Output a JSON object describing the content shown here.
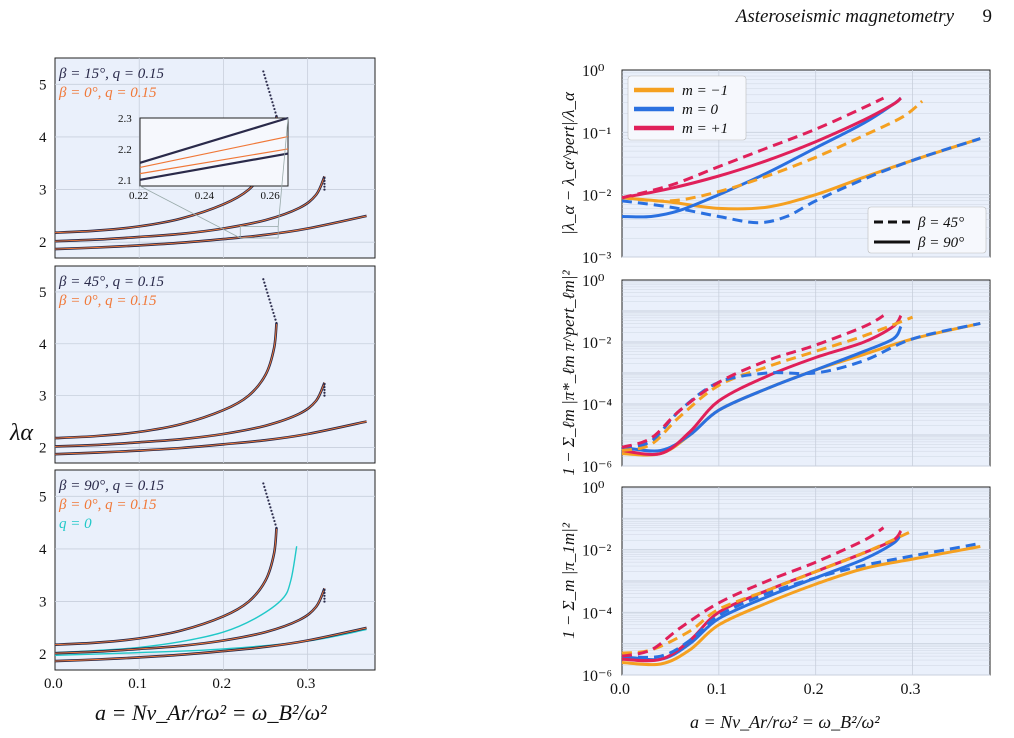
{
  "header": {
    "title": "Asteroseismic magnetometry",
    "page_number": "9"
  },
  "colors": {
    "navy": "#2a2a4a",
    "orange_ref": "#f07838",
    "cyan": "#20c8c8",
    "m_minus1": "#f5a020",
    "m_0": "#2a70e0",
    "m_plus1": "#e0205a",
    "panel_bg": "#eaf0fb",
    "grid": "#c8cfdc"
  },
  "chart_data": [
    {
      "type": "line",
      "id": "left-top",
      "legend": [
        "β = 15°, q = 0.15",
        "β = 0°, q = 0.15"
      ],
      "xlim": [
        0,
        0.38
      ],
      "ylim": [
        1.7,
        5.5
      ],
      "yticks": [
        "2",
        "3",
        "4",
        "5"
      ],
      "xticks": [],
      "inset": {
        "xlim": [
          0.22,
          0.265
        ],
        "ylim": [
          2.08,
          2.3
        ],
        "xticks": [
          "0.22",
          "0.24",
          "0.26"
        ],
        "yticks": [
          "2.1",
          "2.2",
          "2.3"
        ]
      },
      "series": [
        {
          "x": [
            0,
            0.05,
            0.1,
            0.15,
            0.2,
            0.23,
            0.25,
            0.26,
            0.263
          ],
          "y": [
            2.18,
            2.22,
            2.3,
            2.45,
            2.72,
            3.0,
            3.4,
            3.9,
            4.4
          ]
        },
        {
          "x": [
            0,
            0.05,
            0.1,
            0.15,
            0.2,
            0.25,
            0.29,
            0.31,
            0.32
          ],
          "y": [
            2.02,
            2.05,
            2.1,
            2.16,
            2.26,
            2.42,
            2.65,
            2.9,
            3.25
          ]
        },
        {
          "x": [
            0,
            0.05,
            0.1,
            0.15,
            0.2,
            0.25,
            0.3,
            0.37
          ],
          "y": [
            1.87,
            1.9,
            1.94,
            1.99,
            2.06,
            2.14,
            2.26,
            2.5
          ]
        }
      ]
    },
    {
      "type": "line",
      "id": "left-mid",
      "legend": [
        "β = 45°, q = 0.15",
        "β = 0°, q = 0.15"
      ],
      "xlim": [
        0,
        0.38
      ],
      "ylim": [
        1.7,
        5.5
      ],
      "yticks": [
        "2",
        "3",
        "4",
        "5"
      ],
      "xticks": [],
      "series": [
        {
          "x": [
            0,
            0.05,
            0.1,
            0.15,
            0.2,
            0.23,
            0.25,
            0.26,
            0.263
          ],
          "y": [
            2.18,
            2.22,
            2.3,
            2.45,
            2.72,
            3.0,
            3.4,
            3.9,
            4.4
          ]
        },
        {
          "x": [
            0,
            0.05,
            0.1,
            0.15,
            0.2,
            0.25,
            0.29,
            0.31,
            0.32
          ],
          "y": [
            2.02,
            2.05,
            2.1,
            2.16,
            2.26,
            2.42,
            2.65,
            2.9,
            3.25
          ]
        },
        {
          "x": [
            0,
            0.05,
            0.1,
            0.15,
            0.2,
            0.25,
            0.3,
            0.37
          ],
          "y": [
            1.87,
            1.9,
            1.94,
            1.99,
            2.06,
            2.14,
            2.26,
            2.5
          ]
        }
      ]
    },
    {
      "type": "line",
      "id": "left-bot",
      "legend": [
        "β = 90°, q = 0.15",
        "β = 0°, q = 0.15",
        "q = 0"
      ],
      "xlim": [
        0,
        0.38
      ],
      "ylim": [
        1.7,
        5.5
      ],
      "yticks": [
        "2",
        "3",
        "4",
        "5"
      ],
      "xticks": [
        "0.0",
        "0.1",
        "0.2",
        "0.3"
      ],
      "xlabel": "a = Nv_Ar/rω² = ω_B²/ω²",
      "ylabel": "λ_α",
      "series": [
        {
          "x": [
            0,
            0.05,
            0.1,
            0.15,
            0.2,
            0.23,
            0.25,
            0.26,
            0.263
          ],
          "y": [
            2.18,
            2.22,
            2.3,
            2.45,
            2.72,
            3.0,
            3.4,
            3.9,
            4.4
          ]
        },
        {
          "x": [
            0,
            0.05,
            0.1,
            0.15,
            0.2,
            0.25,
            0.29,
            0.31,
            0.32
          ],
          "y": [
            2.02,
            2.05,
            2.1,
            2.16,
            2.26,
            2.42,
            2.65,
            2.9,
            3.25
          ]
        },
        {
          "x": [
            0,
            0.05,
            0.1,
            0.15,
            0.2,
            0.25,
            0.3,
            0.37
          ],
          "y": [
            1.87,
            1.9,
            1.94,
            1.99,
            2.06,
            2.14,
            2.26,
            2.5
          ]
        }
      ],
      "q0_series": [
        {
          "x": [
            0,
            0.05,
            0.1,
            0.15,
            0.2,
            0.24,
            0.27,
            0.28,
            0.287
          ],
          "y": [
            2.03,
            2.07,
            2.13,
            2.24,
            2.42,
            2.7,
            3.05,
            3.4,
            4.05
          ]
        },
        {
          "x": [
            0,
            0.1,
            0.2,
            0.3,
            0.37
          ],
          "y": [
            1.98,
            2.03,
            2.1,
            2.25,
            2.47
          ]
        }
      ]
    },
    {
      "type": "line",
      "id": "right-top",
      "scale": "log",
      "ylabel": "|λ_α − λ_α^pert|/λ_α",
      "ylim_exp": [
        -3,
        0
      ],
      "yticks": [
        "10⁰",
        "10⁻¹",
        "10⁻²",
        "10⁻³"
      ],
      "legend_m": [
        "m = −1",
        "m = 0",
        "m = +1"
      ],
      "legend_beta": [
        "β = 45°",
        "β = 90°"
      ],
      "series": [
        {
          "name": "m = −1",
          "style": "solid",
          "x": [
            0,
            0.05,
            0.1,
            0.15,
            0.2,
            0.25,
            0.3,
            0.37
          ],
          "logy": [
            -2.05,
            -2.12,
            -2.22,
            -2.2,
            -2.0,
            -1.72,
            -1.45,
            -1.1
          ]
        },
        {
          "name": "m = 0",
          "style": "solid",
          "x": [
            0,
            0.03,
            0.06,
            0.1,
            0.15,
            0.2,
            0.25,
            0.28,
            0.288
          ],
          "logy": [
            -2.35,
            -2.35,
            -2.25,
            -2.0,
            -1.65,
            -1.25,
            -0.85,
            -0.55,
            -0.45
          ]
        },
        {
          "name": "m = +1",
          "style": "solid",
          "x": [
            0,
            0.05,
            0.1,
            0.15,
            0.2,
            0.25,
            0.28,
            0.288
          ],
          "logy": [
            -2.05,
            -1.9,
            -1.7,
            -1.45,
            -1.15,
            -0.8,
            -0.55,
            -0.45
          ]
        },
        {
          "name": "m = −1",
          "style": "dash",
          "x": [
            0,
            0.05,
            0.1,
            0.15,
            0.2,
            0.25,
            0.29,
            0.31
          ],
          "logy": [
            -2.05,
            -2.1,
            -1.95,
            -1.7,
            -1.4,
            -1.05,
            -0.75,
            -0.5
          ]
        },
        {
          "name": "m = 0",
          "style": "dash",
          "x": [
            0,
            0.05,
            0.1,
            0.14,
            0.17,
            0.2,
            0.25,
            0.3,
            0.37
          ],
          "logy": [
            -2.1,
            -2.2,
            -2.35,
            -2.45,
            -2.35,
            -2.1,
            -1.75,
            -1.45,
            -1.1
          ]
        },
        {
          "name": "m = +1",
          "style": "dash",
          "x": [
            0,
            0.05,
            0.1,
            0.15,
            0.2,
            0.25,
            0.27
          ],
          "logy": [
            -2.05,
            -1.85,
            -1.55,
            -1.25,
            -0.95,
            -0.6,
            -0.45
          ]
        }
      ]
    },
    {
      "type": "line",
      "id": "right-mid",
      "scale": "log",
      "ylabel": "1 − Σ_ℓm |π*_ℓm π^pert_ℓm|²",
      "ylim_exp": [
        -6,
        0
      ],
      "yticks": [
        "10⁰",
        "10⁻²",
        "10⁻⁴",
        "10⁻⁶"
      ],
      "series": [
        {
          "name": "m = −1",
          "style": "solid",
          "x": [
            0,
            0.04,
            0.07,
            0.1,
            0.15,
            0.2,
            0.25,
            0.3,
            0.37
          ],
          "logy": [
            -5.6,
            -5.6,
            -5.0,
            -4.2,
            -3.5,
            -2.9,
            -2.4,
            -1.9,
            -1.4
          ]
        },
        {
          "name": "m = 0",
          "style": "solid",
          "x": [
            0,
            0.04,
            0.07,
            0.1,
            0.15,
            0.2,
            0.25,
            0.28,
            0.288
          ],
          "logy": [
            -5.4,
            -5.5,
            -5.0,
            -4.2,
            -3.5,
            -2.9,
            -2.3,
            -1.9,
            -1.5
          ]
        },
        {
          "name": "m = +1",
          "style": "solid",
          "x": [
            0,
            0.04,
            0.07,
            0.1,
            0.15,
            0.2,
            0.25,
            0.28,
            0.288
          ],
          "logy": [
            -5.5,
            -5.6,
            -4.9,
            -3.9,
            -3.1,
            -2.5,
            -2.0,
            -1.5,
            -1.15
          ]
        },
        {
          "name": "m = −1",
          "style": "dash",
          "x": [
            0,
            0.03,
            0.06,
            0.1,
            0.15,
            0.2,
            0.25,
            0.3
          ],
          "logy": [
            -5.5,
            -5.3,
            -4.4,
            -3.4,
            -2.8,
            -2.3,
            -1.8,
            -1.2
          ]
        },
        {
          "name": "m = 0",
          "style": "dash",
          "x": [
            0,
            0.03,
            0.06,
            0.1,
            0.15,
            0.2,
            0.25,
            0.3,
            0.37
          ],
          "logy": [
            -5.4,
            -5.2,
            -4.2,
            -3.3,
            -3.0,
            -3.0,
            -2.6,
            -1.9,
            -1.4
          ]
        },
        {
          "name": "m = +1",
          "style": "dash",
          "x": [
            0,
            0.03,
            0.06,
            0.1,
            0.15,
            0.2,
            0.25,
            0.27
          ],
          "logy": [
            -5.4,
            -5.1,
            -4.2,
            -3.3,
            -2.6,
            -2.1,
            -1.5,
            -1.15
          ]
        }
      ]
    },
    {
      "type": "line",
      "id": "right-bot",
      "scale": "log",
      "ylabel": "1 − Σ_m |π_1m|²",
      "ylim_exp": [
        -6,
        0
      ],
      "yticks": [
        "10⁰",
        "10⁻²",
        "10⁻⁴",
        "10⁻⁶"
      ],
      "xticks": [
        "0.0",
        "0.1",
        "0.2",
        "0.3"
      ],
      "xlabel": "a = Nv_Ar/rω² = ω_B²/ω²",
      "series": [
        {
          "name": "m = −1",
          "style": "solid",
          "x": [
            0,
            0.04,
            0.07,
            0.1,
            0.15,
            0.2,
            0.25,
            0.3,
            0.37
          ],
          "logy": [
            -5.6,
            -5.65,
            -5.2,
            -4.4,
            -3.7,
            -3.1,
            -2.6,
            -2.3,
            -1.9
          ]
        },
        {
          "name": "m = 0",
          "style": "solid",
          "x": [
            0,
            0.04,
            0.07,
            0.1,
            0.15,
            0.2,
            0.25,
            0.28,
            0.288
          ],
          "logy": [
            -5.4,
            -5.5,
            -5.0,
            -4.2,
            -3.5,
            -2.9,
            -2.3,
            -1.8,
            -1.5
          ]
        },
        {
          "name": "m = +1",
          "style": "solid",
          "x": [
            0,
            0.04,
            0.07,
            0.1,
            0.15,
            0.2,
            0.25,
            0.28,
            0.288
          ],
          "logy": [
            -5.5,
            -5.5,
            -4.9,
            -4.0,
            -3.3,
            -2.7,
            -2.1,
            -1.7,
            -1.4
          ]
        },
        {
          "name": "m = −1",
          "style": "dash",
          "x": [
            0,
            0.03,
            0.07,
            0.1,
            0.15,
            0.2,
            0.25,
            0.3
          ],
          "logy": [
            -5.3,
            -5.2,
            -4.6,
            -3.9,
            -3.3,
            -2.7,
            -2.1,
            -1.4
          ]
        },
        {
          "name": "m = 0",
          "style": "dash",
          "x": [
            0,
            0.04,
            0.07,
            0.1,
            0.15,
            0.2,
            0.25,
            0.3,
            0.37
          ],
          "logy": [
            -5.4,
            -5.4,
            -4.9,
            -4.1,
            -3.4,
            -2.9,
            -2.5,
            -2.2,
            -1.8
          ]
        },
        {
          "name": "m = +1",
          "style": "dash",
          "x": [
            0,
            0.03,
            0.06,
            0.1,
            0.15,
            0.2,
            0.25,
            0.27
          ],
          "logy": [
            -5.4,
            -5.2,
            -4.5,
            -3.7,
            -3.0,
            -2.4,
            -1.7,
            -1.3
          ]
        }
      ]
    }
  ]
}
